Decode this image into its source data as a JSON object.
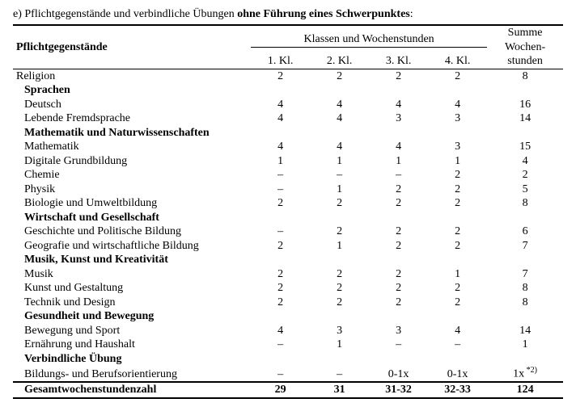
{
  "title_prefix": "e) Pflichtgegenstände und verbindliche Übungen ",
  "title_bold": "ohne Führung eines Schwerpunktes",
  "title_suffix": ":",
  "header": {
    "col1": "Pflichtgegenstände",
    "span_label": "Klassen und Wochenstunden",
    "sum_line1": "Summe",
    "sum_line2": "Wochen-",
    "sum_line3": "stunden",
    "k1": "1. Kl.",
    "k2": "2. Kl.",
    "k3": "3. Kl.",
    "k4": "4. Kl."
  },
  "rows": [
    {
      "type": "data",
      "label": "Religion",
      "vals": [
        "2",
        "2",
        "2",
        "2"
      ],
      "sum": "8"
    },
    {
      "type": "section",
      "label": "Sprachen"
    },
    {
      "type": "data",
      "indent": true,
      "label": "Deutsch",
      "vals": [
        "4",
        "4",
        "4",
        "4"
      ],
      "sum": "16"
    },
    {
      "type": "data",
      "indent": true,
      "label": "Lebende Fremdsprache",
      "vals": [
        "4",
        "4",
        "3",
        "3"
      ],
      "sum": "14"
    },
    {
      "type": "section",
      "label": "Mathematik und Naturwissenschaften"
    },
    {
      "type": "data",
      "indent": true,
      "label": "Mathematik",
      "vals": [
        "4",
        "4",
        "4",
        "3"
      ],
      "sum": "15"
    },
    {
      "type": "data",
      "indent": true,
      "label": "Digitale Grundbildung",
      "vals": [
        "1",
        "1",
        "1",
        "1"
      ],
      "sum": "4"
    },
    {
      "type": "data",
      "indent": true,
      "label": "Chemie",
      "vals": [
        "–",
        "–",
        "–",
        "2"
      ],
      "sum": "2"
    },
    {
      "type": "data",
      "indent": true,
      "label": "Physik",
      "vals": [
        "–",
        "1",
        "2",
        "2"
      ],
      "sum": "5"
    },
    {
      "type": "data",
      "indent": true,
      "label": "Biologie und Umweltbildung",
      "vals": [
        "2",
        "2",
        "2",
        "2"
      ],
      "sum": "8"
    },
    {
      "type": "section",
      "label": "Wirtschaft und Gesellschaft"
    },
    {
      "type": "data",
      "indent": true,
      "label": "Geschichte und Politische Bildung",
      "vals": [
        "–",
        "2",
        "2",
        "2"
      ],
      "sum": "6"
    },
    {
      "type": "data",
      "indent": true,
      "label": "Geografie und wirtschaftliche Bildung",
      "vals": [
        "2",
        "1",
        "2",
        "2"
      ],
      "sum": "7"
    },
    {
      "type": "section",
      "label": "Musik, Kunst und Kreativität"
    },
    {
      "type": "data",
      "indent": true,
      "label": "Musik",
      "vals": [
        "2",
        "2",
        "2",
        "1"
      ],
      "sum": "7"
    },
    {
      "type": "data",
      "indent": true,
      "label": "Kunst und Gestaltung",
      "vals": [
        "2",
        "2",
        "2",
        "2"
      ],
      "sum": "8"
    },
    {
      "type": "data",
      "indent": true,
      "label": "Technik und Design",
      "vals": [
        "2",
        "2",
        "2",
        "2"
      ],
      "sum": "8"
    },
    {
      "type": "section",
      "label": "Gesundheit und Bewegung"
    },
    {
      "type": "data",
      "indent": true,
      "label": "Bewegung und Sport",
      "vals": [
        "4",
        "3",
        "3",
        "4"
      ],
      "sum": "14"
    },
    {
      "type": "data",
      "indent": true,
      "label": "Ernährung und Haushalt",
      "vals": [
        "–",
        "1",
        "–",
        "–"
      ],
      "sum": "1"
    },
    {
      "type": "section",
      "label": "Verbindliche Übung"
    },
    {
      "type": "data",
      "indent": true,
      "label": "Bildungs- und Berufsorientierung",
      "vals": [
        "–",
        "–",
        "0-1x",
        "0-1x"
      ],
      "sum": "1x",
      "sup": "*2)"
    }
  ],
  "total": {
    "label": "Gesamtwochenstundenzahl",
    "vals": [
      "29",
      "31",
      "31-32",
      "32-33"
    ],
    "sum": "124"
  },
  "style": {
    "text_color": "#000000",
    "bg": "#ffffff",
    "font": "Times New Roman",
    "base_size": 14
  }
}
